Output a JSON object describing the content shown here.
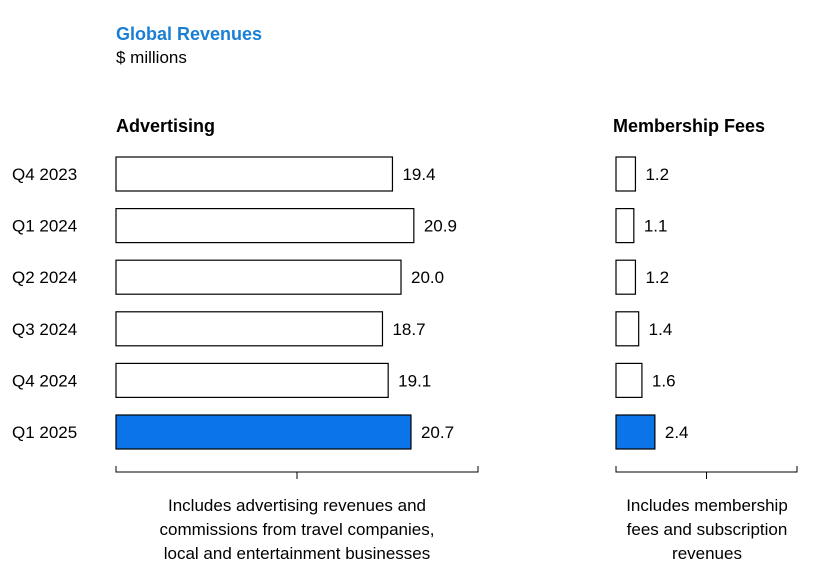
{
  "header": {
    "title": "Global Revenues",
    "subtitle": "$ millions"
  },
  "colors": {
    "title": "#1a7fd4",
    "highlight": "#0a74e8",
    "bar_fill": "#ffffff",
    "bar_stroke": "#000000"
  },
  "chart_data": [
    {
      "type": "bar",
      "orientation": "horizontal",
      "title": "Advertising",
      "categories": [
        "Q4 2023",
        "Q1 2024",
        "Q2 2024",
        "Q3 2024",
        "Q4 2024",
        "Q1 2025"
      ],
      "values": [
        19.4,
        20.9,
        20.0,
        18.7,
        19.1,
        20.7
      ],
      "value_labels": [
        "19.4",
        "20.9",
        "20.0",
        "18.7",
        "19.1",
        "20.7"
      ],
      "highlighted_category": "Q1 2025",
      "xlim": [
        0,
        24
      ],
      "grid": false,
      "note_lines": [
        "Includes advertising revenues and",
        "commissions from travel companies,",
        "local and entertainment businesses"
      ]
    },
    {
      "type": "bar",
      "orientation": "horizontal",
      "title": "Membership Fees",
      "categories": [
        "Q4 2023",
        "Q1 2024",
        "Q2 2024",
        "Q3 2024",
        "Q4 2024",
        "Q1 2025"
      ],
      "values": [
        1.2,
        1.1,
        1.2,
        1.4,
        1.6,
        2.4
      ],
      "value_labels": [
        "1.2",
        "1.1",
        "1.2",
        "1.4",
        "1.6",
        "2.4"
      ],
      "highlighted_category": "Q1 2025",
      "xlim": [
        0,
        10
      ],
      "grid": false,
      "note_lines": [
        "Includes membership",
        "fees and subscription",
        "revenues"
      ]
    }
  ]
}
